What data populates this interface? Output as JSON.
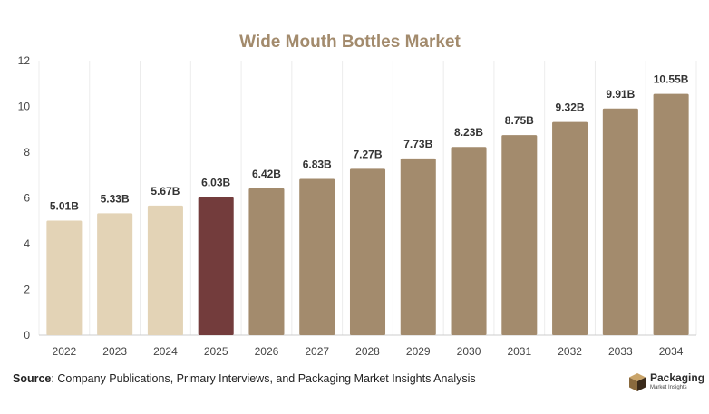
{
  "chart_data": {
    "type": "bar",
    "title": "Wide Mouth Bottles Market",
    "categories": [
      "2022",
      "2023",
      "2024",
      "2025",
      "2026",
      "2027",
      "2028",
      "2029",
      "2030",
      "2031",
      "2032",
      "2033",
      "2034"
    ],
    "values": [
      5.01,
      5.33,
      5.67,
      6.03,
      6.42,
      6.83,
      7.27,
      7.73,
      8.23,
      8.75,
      9.32,
      9.91,
      10.55
    ],
    "value_labels": [
      "5.01B",
      "5.33B",
      "5.67B",
      "6.03B",
      "6.42B",
      "6.83B",
      "7.27B",
      "7.73B",
      "8.23B",
      "8.75B",
      "9.32B",
      "9.91B",
      "10.55B"
    ],
    "bar_colors": [
      "#e3d3b6",
      "#e3d3b6",
      "#e3d3b6",
      "#733c3c",
      "#a38b6d",
      "#a38b6d",
      "#a38b6d",
      "#a38b6d",
      "#a38b6d",
      "#a38b6d",
      "#a38b6d",
      "#a38b6d",
      "#a38b6d"
    ],
    "ylim": [
      0,
      12
    ],
    "yticks": [
      0,
      2,
      4,
      6,
      8,
      10,
      12
    ],
    "xlabel": "",
    "ylabel": "",
    "grid": "vertical",
    "title_color": "#a38b6d"
  },
  "source": {
    "label": "Source",
    "text": ": Company Publications, Primary Interviews, and Packaging Market Insights Analysis"
  },
  "logo": {
    "name": "Packaging",
    "tagline": "Market Insights"
  }
}
